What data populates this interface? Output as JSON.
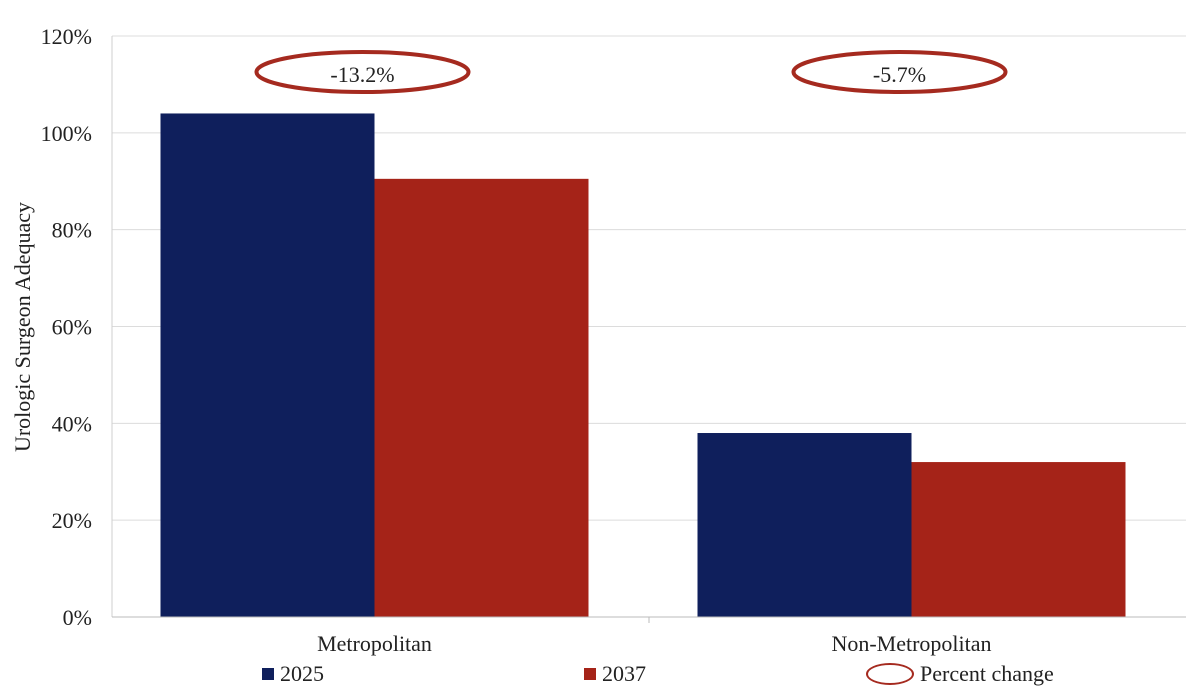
{
  "chart_data": {
    "type": "bar",
    "categories": [
      "Metropolitan",
      "Non-Metropolitan"
    ],
    "series": [
      {
        "name": "2025",
        "values": [
          104,
          38
        ],
        "color": "#0f1f5c"
      },
      {
        "name": "2037",
        "values": [
          90.5,
          32
        ],
        "color": "#a52318"
      }
    ],
    "ylabel": "Urologic Surgeon Adequacy",
    "ylim": [
      0,
      120
    ],
    "yticks": [
      "0%",
      "20%",
      "40%",
      "60%",
      "80%",
      "100%",
      "120%"
    ],
    "grid": true,
    "annotations": [
      {
        "category": "Metropolitan",
        "text": "-13.2%"
      },
      {
        "category": "Non-Metropolitan",
        "text": "-5.7%"
      }
    ],
    "legend": {
      "placement": "bottom",
      "entries": [
        "2025",
        "2037",
        "Percent change"
      ]
    },
    "annotation_color": "#a52a1f"
  }
}
